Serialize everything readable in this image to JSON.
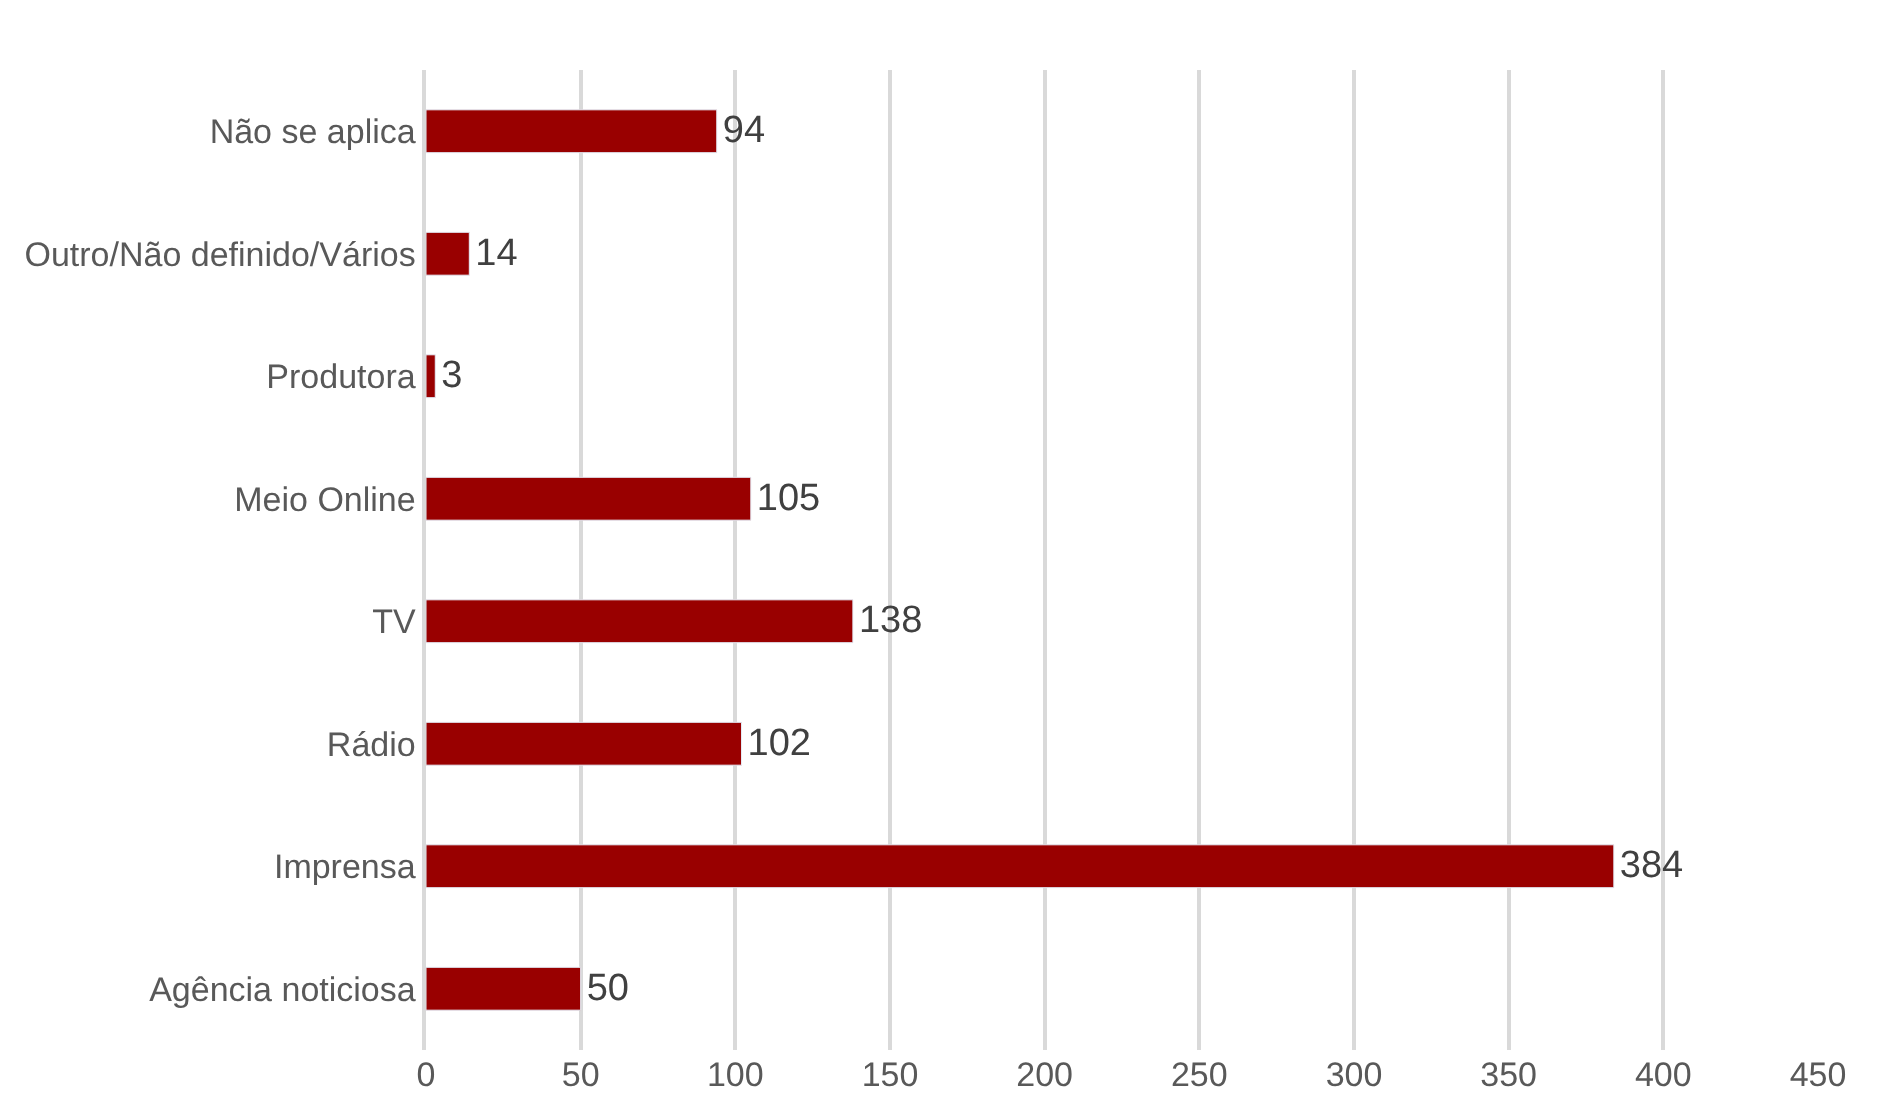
{
  "chart_data": {
    "type": "bar",
    "orientation": "horizontal",
    "categories": [
      "Não se aplica",
      "Outro/Não definido/Vários",
      "Produtora",
      "Meio Online",
      "TV",
      "Rádio",
      "Imprensa",
      "Agência noticiosa"
    ],
    "values": [
      94,
      14,
      3,
      105,
      138,
      102,
      384,
      50
    ],
    "color": "#990000",
    "xlim": [
      0,
      450
    ],
    "xticks": [
      0,
      50,
      100,
      150,
      200,
      250,
      300,
      350,
      400,
      450
    ],
    "grid": "x",
    "data_labels": true,
    "legend": false
  }
}
